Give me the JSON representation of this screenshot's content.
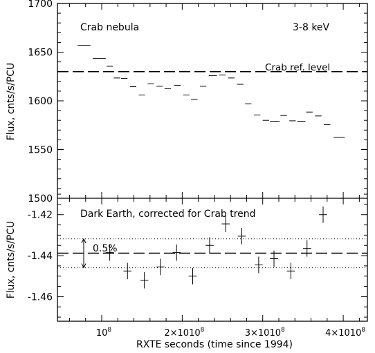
{
  "chart_data": [
    {
      "type": "scatter",
      "title_left": "Crab nebula",
      "title_right": "3-8 keV",
      "ylabel": "Flux, cnts/s/PCU",
      "ylim": [
        1500,
        1700
      ],
      "yticks": [
        "1700",
        "1650",
        "1600",
        "1550",
        "1500"
      ],
      "reference_line": {
        "label": "Crab ref. level",
        "value": 1630
      },
      "points": [
        {
          "x": 78000000.0,
          "xerr": 8000000.0,
          "y": 1657
        },
        {
          "x": 97000000.0,
          "xerr": 8000000.0,
          "y": 1643.5
        },
        {
          "x": 110000000.0,
          "xerr": 4000000.0,
          "y": 1635.5
        },
        {
          "x": 119000000.0,
          "xerr": 4000000.0,
          "y": 1623.5
        },
        {
          "x": 128000000.0,
          "xerr": 4000000.0,
          "y": 1623
        },
        {
          "x": 139000000.0,
          "xerr": 4000000.0,
          "y": 1614.5
        },
        {
          "x": 150000000.0,
          "xerr": 4000000.0,
          "y": 1606
        },
        {
          "x": 161000000.0,
          "xerr": 4000000.0,
          "y": 1617.5
        },
        {
          "x": 172000000.0,
          "xerr": 4000000.0,
          "y": 1615
        },
        {
          "x": 182000000.0,
          "xerr": 4000000.0,
          "y": 1612.5
        },
        {
          "x": 194000000.0,
          "xerr": 4000000.0,
          "y": 1616
        },
        {
          "x": 205000000.0,
          "xerr": 4000000.0,
          "y": 1606
        },
        {
          "x": 215000000.0,
          "xerr": 4000000.0,
          "y": 1601.5
        },
        {
          "x": 226000000.0,
          "xerr": 4000000.0,
          "y": 1615
        },
        {
          "x": 238000000.0,
          "xerr": 5000000.0,
          "y": 1626
        },
        {
          "x": 250000000.0,
          "xerr": 4000000.0,
          "y": 1626.5
        },
        {
          "x": 261000000.0,
          "xerr": 4000000.0,
          "y": 1623.5
        },
        {
          "x": 272000000.0,
          "xerr": 4000000.0,
          "y": 1617
        },
        {
          "x": 282000000.0,
          "xerr": 4000000.0,
          "y": 1597
        },
        {
          "x": 293000000.0,
          "xerr": 4000000.0,
          "y": 1585.5
        },
        {
          "x": 304000000.0,
          "xerr": 4000000.0,
          "y": 1580
        },
        {
          "x": 315000000.0,
          "xerr": 6000000.0,
          "y": 1579
        },
        {
          "x": 326000000.0,
          "xerr": 4000000.0,
          "y": 1585
        },
        {
          "x": 337000000.0,
          "xerr": 4000000.0,
          "y": 1579.5
        },
        {
          "x": 348000000.0,
          "xerr": 5000000.0,
          "y": 1579
        },
        {
          "x": 358000000.0,
          "xerr": 4000000.0,
          "y": 1588.5
        },
        {
          "x": 369000000.0,
          "xerr": 4000000.0,
          "y": 1584.5
        },
        {
          "x": 380000000.0,
          "xerr": 4000000.0,
          "y": 1575.5
        },
        {
          "x": 395000000.0,
          "xerr": 7000000.0,
          "y": 1562.5
        }
      ]
    },
    {
      "type": "scatter",
      "title": "Dark Earth, corrected for Crab trend",
      "ylabel": "Flux, cnts/s/PCU",
      "xlabel": "RXTE seconds (time since 1994)",
      "xlim": [
        45000000.0,
        430000000.0
      ],
      "xticks": [
        {
          "value": 100000000.0,
          "mantissa": "",
          "exp": "8"
        },
        {
          "value": 200000000.0,
          "mantissa": "2×10",
          "exp": "8"
        },
        {
          "value": 300000000.0,
          "mantissa": "3×10",
          "exp": "8"
        },
        {
          "value": 400000000.0,
          "mantissa": "4×10",
          "exp": "8"
        }
      ],
      "ylim": [
        -1.472,
        -1.412
      ],
      "yticks": [
        "-1.42",
        "-1.44",
        "-1.46"
      ],
      "reference_line": {
        "value": -1.4388
      },
      "band": {
        "upper": -1.4318,
        "lower": -1.4459,
        "label": "0.5%"
      },
      "points": [
        {
          "x": 110000000.0,
          "xerr": 5000000.0,
          "y": -1.4385,
          "yerr": 0.004
        },
        {
          "x": 132000000.0,
          "xerr": 5000000.0,
          "y": -1.4475,
          "yerr": 0.004
        },
        {
          "x": 153000000.0,
          "xerr": 5000000.0,
          "y": -1.452,
          "yerr": 0.004
        },
        {
          "x": 173000000.0,
          "xerr": 5000000.0,
          "y": -1.4455,
          "yerr": 0.004
        },
        {
          "x": 193000000.0,
          "xerr": 5000000.0,
          "y": -1.4385,
          "yerr": 0.004
        },
        {
          "x": 213000000.0,
          "xerr": 5000000.0,
          "y": -1.45,
          "yerr": 0.004
        },
        {
          "x": 234000000.0,
          "xerr": 5000000.0,
          "y": -1.435,
          "yerr": 0.004
        },
        {
          "x": 254000000.0,
          "xerr": 5000000.0,
          "y": -1.4245,
          "yerr": 0.004
        },
        {
          "x": 274000000.0,
          "xerr": 5000000.0,
          "y": -1.4305,
          "yerr": 0.004
        },
        {
          "x": 295000000.0,
          "xerr": 5000000.0,
          "y": -1.4445,
          "yerr": 0.004
        },
        {
          "x": 314000000.0,
          "xerr": 5000000.0,
          "y": -1.4415,
          "yerr": 0.004
        },
        {
          "x": 335000000.0,
          "xerr": 5000000.0,
          "y": -1.4475,
          "yerr": 0.004
        },
        {
          "x": 355000000.0,
          "xerr": 5000000.0,
          "y": -1.4365,
          "yerr": 0.004
        },
        {
          "x": 375000000.0,
          "xerr": 5000000.0,
          "y": -1.42,
          "yerr": 0.004
        }
      ]
    }
  ]
}
